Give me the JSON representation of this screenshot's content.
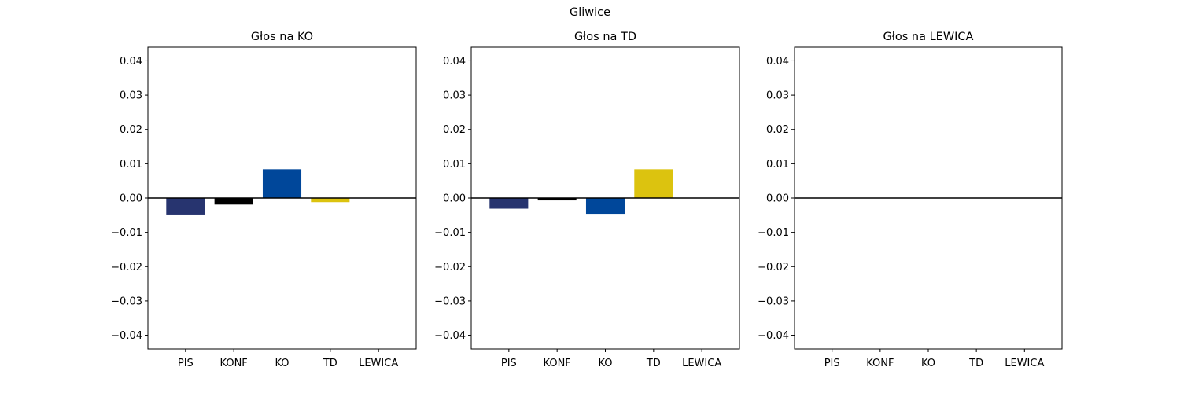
{
  "figure": {
    "title": "Gliwice"
  },
  "chart_data": [
    {
      "type": "bar",
      "title": "Głos na KO",
      "categories": [
        "PIS",
        "KONF",
        "KO",
        "TD",
        "LEWICA"
      ],
      "values": [
        -0.0048,
        -0.0019,
        0.0084,
        -0.0012,
        0.0
      ],
      "colors": [
        "#27346f",
        "#000000",
        "#00479a",
        "#dcc30f",
        "#d6001c"
      ],
      "ylim": [
        -0.044,
        0.044
      ],
      "yticks": [
        -0.04,
        -0.03,
        -0.02,
        -0.01,
        0.0,
        0.01,
        0.02,
        0.03,
        0.04
      ],
      "ytick_labels": [
        "−0.04",
        "−0.03",
        "−0.02",
        "−0.01",
        "0.00",
        "0.01",
        "0.02",
        "0.03",
        "0.04"
      ],
      "baseline": 0,
      "xlabel": "",
      "ylabel": "",
      "grid": false
    },
    {
      "type": "bar",
      "title": "Głos na TD",
      "categories": [
        "PIS",
        "KONF",
        "KO",
        "TD",
        "LEWICA"
      ],
      "values": [
        -0.0031,
        -0.0007,
        -0.0046,
        0.0084,
        0.0
      ],
      "colors": [
        "#27346f",
        "#000000",
        "#00479a",
        "#dcc30f",
        "#d6001c"
      ],
      "ylim": [
        -0.044,
        0.044
      ],
      "yticks": [
        -0.04,
        -0.03,
        -0.02,
        -0.01,
        0.0,
        0.01,
        0.02,
        0.03,
        0.04
      ],
      "ytick_labels": [
        "−0.04",
        "−0.03",
        "−0.02",
        "−0.01",
        "0.00",
        "0.01",
        "0.02",
        "0.03",
        "0.04"
      ],
      "baseline": 0,
      "xlabel": "",
      "ylabel": "",
      "grid": false
    },
    {
      "type": "bar",
      "title": "Głos na LEWICA",
      "categories": [
        "PIS",
        "KONF",
        "KO",
        "TD",
        "LEWICA"
      ],
      "values": [
        0.0,
        0.0,
        0.0,
        0.0,
        0.0
      ],
      "colors": [
        "#27346f",
        "#000000",
        "#00479a",
        "#dcc30f",
        "#d6001c"
      ],
      "ylim": [
        -0.044,
        0.044
      ],
      "yticks": [
        -0.04,
        -0.03,
        -0.02,
        -0.01,
        0.0,
        0.01,
        0.02,
        0.03,
        0.04
      ],
      "ytick_labels": [
        "−0.04",
        "−0.03",
        "−0.02",
        "−0.01",
        "0.00",
        "0.01",
        "0.02",
        "0.03",
        "0.04"
      ],
      "baseline": 0,
      "xlabel": "",
      "ylabel": "",
      "grid": false
    }
  ]
}
